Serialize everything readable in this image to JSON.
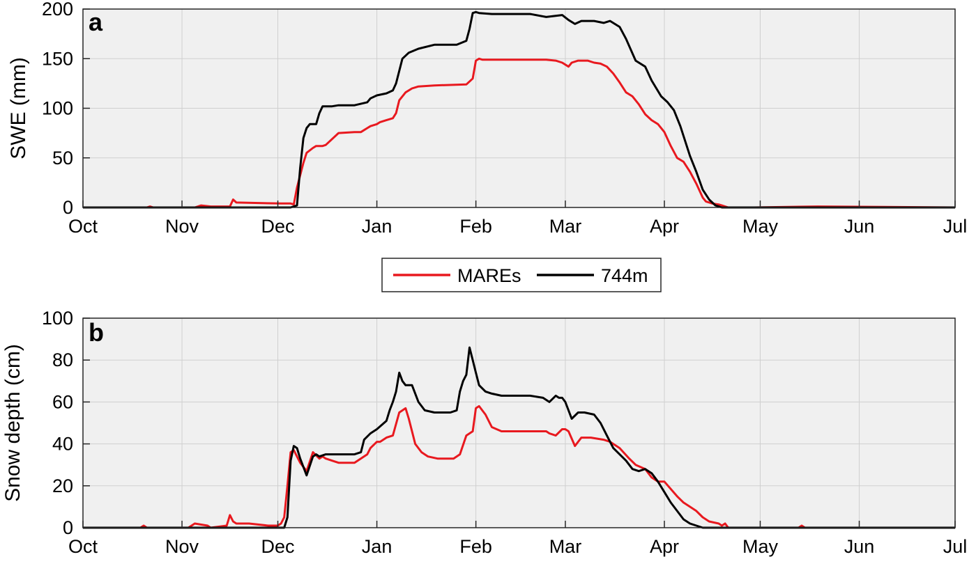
{
  "legend": {
    "entries": [
      {
        "label": "MAREs",
        "color": "#e8191f"
      },
      {
        "label": "744m",
        "color": "#000000"
      }
    ]
  },
  "chart_data": [
    {
      "type": "line",
      "panel_label": "a",
      "ylabel": "SWE (mm)",
      "xlabel": "",
      "x_tick_labels": [
        "Oct",
        "Nov",
        "Dec",
        "Jan",
        "Feb",
        "Mar",
        "Apr",
        "May",
        "Jun",
        "Jul"
      ],
      "x_tick_days": [
        0,
        31,
        61,
        92,
        123,
        151,
        182,
        212,
        243,
        273
      ],
      "xlim_days": [
        0,
        273
      ],
      "ylim": [
        0,
        200
      ],
      "y_ticks": [
        0,
        50,
        100,
        150,
        200
      ],
      "grid": true,
      "background": "#f0f0f0",
      "series": [
        {
          "name": "MAREs",
          "color": "#e8191f",
          "x_days": [
            0,
            20,
            21,
            22,
            35,
            36,
            37,
            40,
            46,
            47,
            48,
            62,
            65,
            66,
            67,
            69,
            70,
            72,
            73,
            75,
            76,
            80,
            85,
            87,
            88,
            89,
            90,
            92,
            93,
            95,
            97,
            98,
            99,
            101,
            103,
            105,
            110,
            120,
            122,
            123,
            124,
            125,
            128,
            135,
            140,
            145,
            148,
            150,
            152,
            153,
            155,
            158,
            160,
            162,
            164,
            166,
            168,
            170,
            172,
            174,
            176,
            178,
            180,
            182,
            184,
            186,
            188,
            190,
            192,
            194,
            195,
            197,
            199,
            200,
            202,
            210,
            230,
            273
          ],
          "y": [
            0,
            0,
            1,
            0,
            0,
            1,
            2,
            1,
            1,
            8,
            5,
            4,
            4,
            3,
            20,
            45,
            55,
            60,
            62,
            62,
            63,
            75,
            76,
            76,
            78,
            80,
            82,
            84,
            86,
            88,
            90,
            95,
            108,
            116,
            120,
            122,
            123,
            124,
            130,
            148,
            150,
            149,
            149,
            149,
            149,
            149,
            148,
            146,
            142,
            146,
            148,
            148,
            146,
            145,
            142,
            135,
            126,
            116,
            112,
            104,
            94,
            88,
            84,
            76,
            62,
            50,
            46,
            36,
            24,
            10,
            6,
            4,
            3,
            2,
            0,
            0,
            1,
            0
          ]
        },
        {
          "name": "744m",
          "color": "#000000",
          "x_days": [
            0,
            60,
            65,
            67,
            68,
            69,
            70,
            71,
            73,
            74,
            75,
            76,
            78,
            80,
            85,
            89,
            90,
            92,
            95,
            97,
            98,
            100,
            102,
            105,
            110,
            113,
            117,
            120,
            121,
            122,
            123,
            124,
            128,
            135,
            140,
            145,
            150,
            152,
            154,
            156,
            160,
            163,
            165,
            168,
            170,
            173,
            176,
            178,
            181,
            183,
            185,
            187,
            190,
            192,
            194,
            196,
            198,
            200,
            202,
            210,
            273
          ],
          "y": [
            0,
            0,
            0,
            2,
            40,
            70,
            80,
            84,
            84,
            95,
            102,
            102,
            102,
            103,
            103,
            106,
            110,
            113,
            115,
            118,
            125,
            150,
            156,
            160,
            164,
            164,
            164,
            168,
            180,
            196,
            197,
            196,
            195,
            195,
            195,
            192,
            194,
            189,
            185,
            188,
            188,
            186,
            188,
            182,
            170,
            148,
            142,
            128,
            112,
            106,
            98,
            82,
            52,
            36,
            18,
            8,
            2,
            0,
            0,
            0,
            0
          ]
        }
      ]
    },
    {
      "type": "line",
      "panel_label": "b",
      "ylabel": "Snow depth (cm)",
      "xlabel": "",
      "x_tick_labels": [
        "Oct",
        "Nov",
        "Dec",
        "Jan",
        "Feb",
        "Mar",
        "Apr",
        "May",
        "Jun",
        "Jul"
      ],
      "x_tick_days": [
        0,
        31,
        61,
        92,
        123,
        151,
        182,
        212,
        243,
        273
      ],
      "xlim_days": [
        0,
        273
      ],
      "ylim": [
        0,
        100
      ],
      "y_ticks": [
        0,
        20,
        40,
        60,
        80,
        100
      ],
      "grid": true,
      "background": "#f0f0f0",
      "series": [
        {
          "name": "MAREs",
          "color": "#e8191f",
          "x_days": [
            0,
            18,
            19,
            20,
            33,
            34,
            35,
            39,
            40,
            45,
            46,
            47,
            48,
            52,
            58,
            61,
            62,
            63,
            64,
            65,
            66,
            67,
            68,
            70,
            72,
            74,
            75,
            76,
            78,
            80,
            85,
            89,
            90,
            92,
            93,
            95,
            97,
            99,
            101,
            102,
            103,
            104,
            106,
            108,
            111,
            116,
            118,
            120,
            122,
            123,
            124,
            126,
            128,
            131,
            140,
            145,
            146,
            148,
            150,
            151,
            152,
            154,
            156,
            159,
            163,
            165,
            168,
            171,
            173,
            176,
            178,
            180,
            182,
            186,
            188,
            190,
            192,
            194,
            196,
            199,
            200,
            201,
            202,
            210,
            224,
            225,
            226,
            273
          ],
          "y": [
            0,
            0,
            1,
            0,
            0,
            1,
            2,
            1,
            0,
            1,
            6,
            3,
            2,
            2,
            1,
            1,
            2,
            5,
            20,
            36,
            37,
            34,
            31,
            27,
            36,
            33,
            34,
            33,
            32,
            31,
            31,
            35,
            38,
            41,
            41,
            43,
            44,
            55,
            57,
            52,
            46,
            40,
            36,
            34,
            33,
            33,
            35,
            44,
            46,
            57,
            58,
            54,
            48,
            46,
            46,
            46,
            45,
            44,
            47,
            47,
            46,
            39,
            43,
            43,
            42,
            41,
            38,
            33,
            30,
            28,
            24,
            22,
            22,
            15,
            12,
            10,
            8,
            5,
            3,
            2,
            1,
            2,
            0,
            0,
            0,
            1,
            0,
            0
          ]
        },
        {
          "name": "744m",
          "color": "#000000",
          "x_days": [
            0,
            60,
            63,
            64,
            65,
            66,
            67,
            68,
            70,
            72,
            73,
            74,
            76,
            80,
            85,
            87,
            88,
            90,
            92,
            95,
            96,
            97,
            98,
            99,
            100,
            101,
            103,
            105,
            107,
            110,
            115,
            117,
            118,
            119,
            120,
            121,
            122,
            123,
            124,
            126,
            128,
            131,
            140,
            144,
            146,
            148,
            149,
            150,
            151,
            153,
            155,
            157,
            160,
            162,
            164,
            166,
            168,
            170,
            172,
            174,
            176,
            178,
            180,
            182,
            184,
            186,
            188,
            190,
            192,
            194,
            196,
            200,
            210,
            273
          ],
          "y": [
            0,
            0,
            0,
            5,
            32,
            39,
            38,
            33,
            25,
            34,
            35,
            34,
            35,
            35,
            35,
            36,
            42,
            45,
            47,
            51,
            56,
            60,
            65,
            74,
            70,
            68,
            68,
            60,
            56,
            55,
            55,
            56,
            65,
            70,
            73,
            86,
            80,
            74,
            68,
            65,
            64,
            63,
            63,
            62,
            60,
            63,
            62,
            62,
            60,
            52,
            55,
            55,
            54,
            50,
            44,
            38,
            35,
            32,
            28,
            27,
            28,
            26,
            22,
            17,
            12,
            8,
            4,
            2,
            1,
            0,
            0,
            0,
            0,
            0
          ]
        }
      ]
    }
  ]
}
